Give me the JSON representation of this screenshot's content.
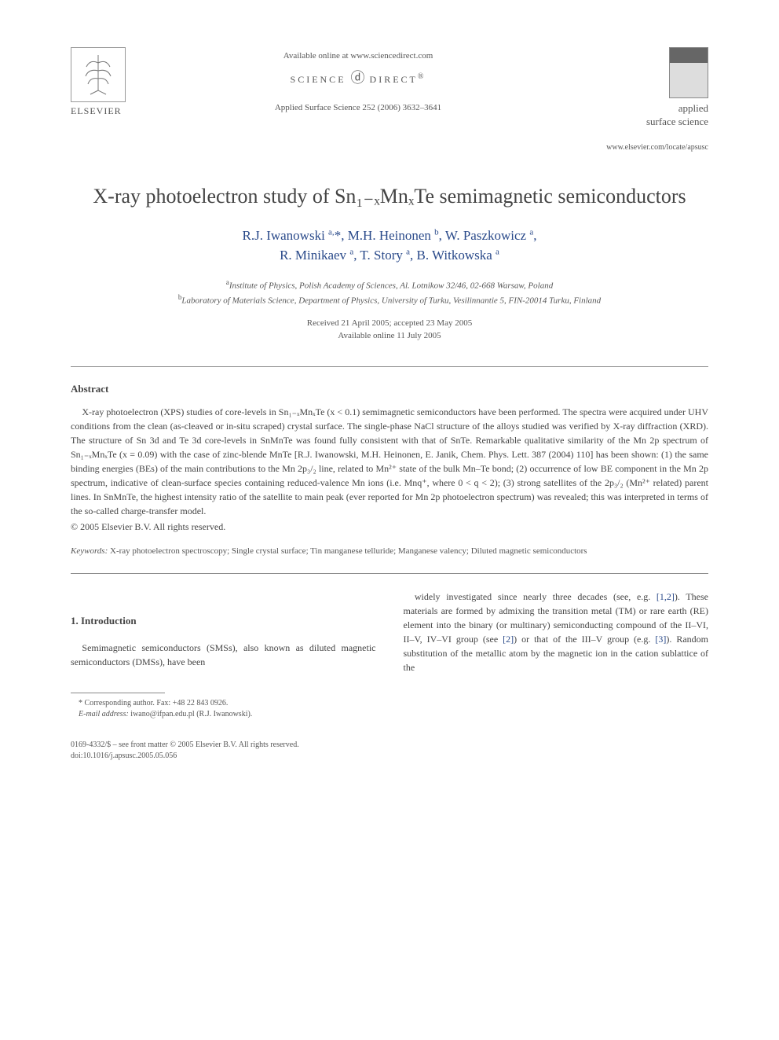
{
  "header": {
    "elsevier_label": "ELSEVIER",
    "available_online": "Available online at www.sciencedirect.com",
    "science_direct": "SCIENCE",
    "science_direct2": "DIRECT",
    "journal_ref": "Applied Surface Science 252 (2006) 3632–3641",
    "journal_name_line1": "applied",
    "journal_name_line2": "surface science",
    "journal_url": "www.elsevier.com/locate/apsusc"
  },
  "title": "X-ray photoelectron study of Sn₁₋ₓMnₓTe semimagnetic semiconductors",
  "authors_html": "R.J. Iwanowski <sup>a,</sup>*, M.H. Heinonen <sup>b</sup>, W. Paszkowicz <sup>a</sup>,<br>R. Minikaev <sup>a</sup>, T. Story <sup>a</sup>, B. Witkowska <sup>a</sup>",
  "affiliations": {
    "a": "Institute of Physics, Polish Academy of Sciences, Al. Lotnikow 32/46, 02-668 Warsaw, Poland",
    "b": "Laboratory of Materials Science, Department of Physics, University of Turku, Vesilinnantie 5, FIN-20014 Turku, Finland"
  },
  "dates": {
    "received": "Received 21 April 2005; accepted 23 May 2005",
    "online": "Available online 11 July 2005"
  },
  "abstract": {
    "heading": "Abstract",
    "text": "X-ray photoelectron (XPS) studies of core-levels in Sn₁₋ₓMnₓTe (x < 0.1) semimagnetic semiconductors have been performed. The spectra were acquired under UHV conditions from the clean (as-cleaved or in-situ scraped) crystal surface. The single-phase NaCl structure of the alloys studied was verified by X-ray diffraction (XRD). The structure of Sn 3d and Te 3d core-levels in SnMnTe was found fully consistent with that of SnTe. Remarkable qualitative similarity of the Mn 2p spectrum of Sn₁₋ₓMnₓTe (x = 0.09) with the case of zinc-blende MnTe [R.J. Iwanowski, M.H. Heinonen, E. Janik, Chem. Phys. Lett. 387 (2004) 110] has been shown: (1) the same binding energies (BEs) of the main contributions to the Mn 2p₃/₂ line, related to Mn²⁺ state of the bulk Mn–Te bond; (2) occurrence of low BE component in the Mn 2p spectrum, indicative of clean-surface species containing reduced-valence Mn ions (i.e. Mnq⁺, where 0 < q < 2); (3) strong satellites of the 2p₃/₂ (Mn²⁺ related) parent lines. In SnMnTe, the highest intensity ratio of the satellite to main peak (ever reported for Mn 2p photoelectron spectrum) was revealed; this was interpreted in terms of the so-called charge-transfer model.",
    "copyright": "© 2005 Elsevier B.V. All rights reserved."
  },
  "keywords": {
    "label": "Keywords:",
    "text": "X-ray photoelectron spectroscopy; Single crystal surface; Tin manganese telluride; Manganese valency; Diluted magnetic semiconductors"
  },
  "section1": {
    "heading": "1. Introduction",
    "col1": "Semimagnetic semiconductors (SMSs), also known as diluted magnetic semiconductors (DMSs), have been",
    "col2": "widely investigated since nearly three decades (see, e.g. [1,2]). These materials are formed by admixing the transition metal (TM) or rare earth (RE) element into the binary (or multinary) semiconducting compound of the II–VI, II–V, IV–VI group (see [2]) or that of the III–V group (e.g. [3]). Random substitution of the metallic atom by the magnetic ion in the cation sublattice of the"
  },
  "footnote": {
    "corresponding": "* Corresponding author. Fax: +48 22 843 0926.",
    "email_label": "E-mail address:",
    "email": "iwano@ifpan.edu.pl (R.J. Iwanowski)."
  },
  "footer": {
    "line1": "0169-4332/$ – see front matter © 2005 Elsevier B.V. All rights reserved.",
    "line2": "doi:10.1016/j.apsusc.2005.05.056"
  }
}
